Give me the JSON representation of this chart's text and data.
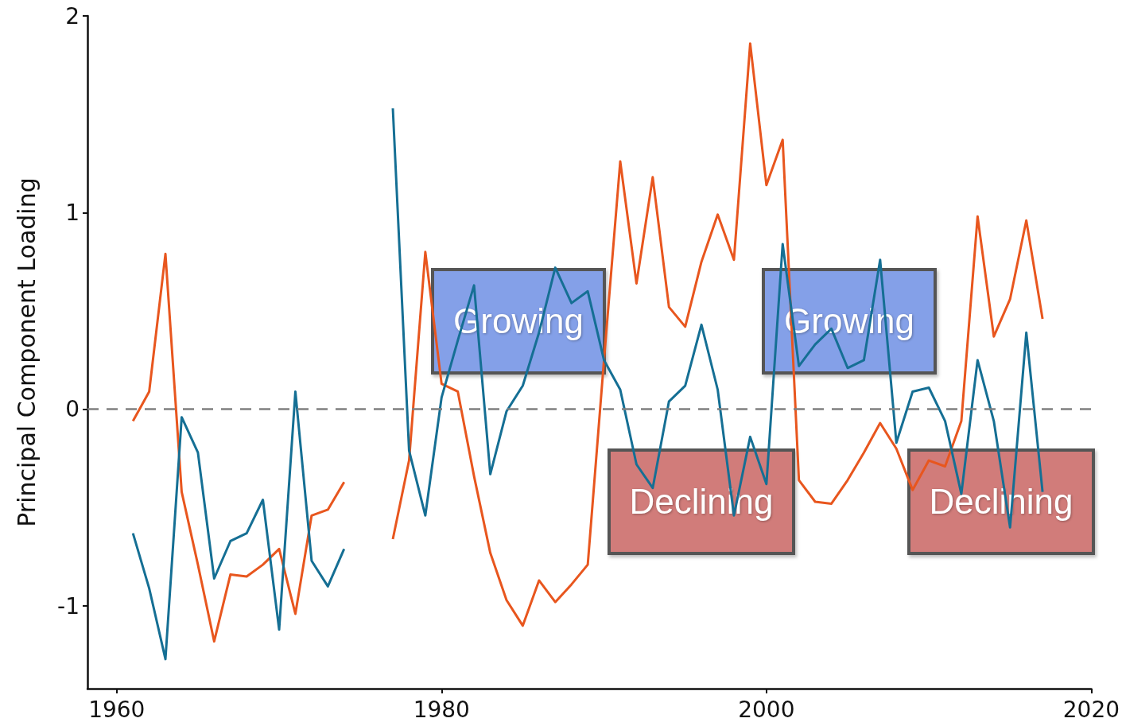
{
  "chart_data": {
    "type": "line",
    "ylabel": "Principal Component Loading",
    "x": [
      1961,
      1962,
      1963,
      1964,
      1965,
      1966,
      1967,
      1968,
      1969,
      1970,
      1971,
      1972,
      1973,
      1974,
      1975,
      1976,
      1977,
      1978,
      1979,
      1980,
      1981,
      1982,
      1983,
      1984,
      1985,
      1986,
      1987,
      1988,
      1989,
      1990,
      1991,
      1992,
      1993,
      1994,
      1995,
      1996,
      1997,
      1998,
      1999,
      2000,
      2001,
      2002,
      2003,
      2004,
      2005,
      2006,
      2007,
      2008,
      2009,
      2010,
      2011,
      2012,
      2013,
      2014,
      2015,
      2016,
      2017
    ],
    "series": [
      {
        "color": "#e8561e",
        "values": [
          -0.06,
          0.09,
          0.79,
          -0.42,
          -0.79,
          -1.18,
          -0.84,
          -0.85,
          -0.79,
          -0.71,
          -1.04,
          -0.54,
          -0.51,
          -0.37,
          null,
          null,
          -0.66,
          -0.26,
          0.8,
          0.13,
          0.09,
          -0.34,
          -0.73,
          -0.97,
          -1.1,
          -0.87,
          -0.98,
          -0.89,
          -0.79,
          0.25,
          1.26,
          0.64,
          1.18,
          0.52,
          0.42,
          0.75,
          0.99,
          0.76,
          1.86,
          1.14,
          1.37,
          -0.36,
          -0.47,
          -0.48,
          -0.36,
          -0.22,
          -0.07,
          -0.2,
          -0.41,
          -0.26,
          -0.29,
          -0.06,
          0.98,
          0.37,
          0.56,
          0.96,
          0.46
        ]
      },
      {
        "color": "#156f94",
        "values": [
          -0.63,
          -0.91,
          -1.27,
          -0.04,
          -0.22,
          -0.86,
          -0.67,
          -0.63,
          -0.46,
          -1.12,
          0.09,
          -0.77,
          -0.9,
          -0.71,
          null,
          null,
          1.53,
          -0.21,
          -0.54,
          0.06,
          0.35,
          0.63,
          -0.33,
          -0.01,
          0.12,
          0.39,
          0.72,
          0.54,
          0.6,
          0.25,
          0.1,
          -0.28,
          -0.4,
          0.04,
          0.12,
          0.43,
          0.1,
          -0.54,
          -0.14,
          -0.38,
          0.84,
          0.22,
          0.33,
          0.41,
          0.21,
          0.25,
          0.76,
          -0.17,
          0.09,
          0.11,
          -0.06,
          -0.43,
          0.25,
          -0.06,
          -0.6,
          0.39,
          -0.42
        ]
      }
    ],
    "xlim": [
      1958.2,
      2020
    ],
    "xticks": [
      1960,
      1980,
      2000,
      2020
    ],
    "ylim": [
      -1.42,
      2
    ],
    "yticks": [
      -1,
      0,
      1,
      2
    ],
    "ref_lines": [
      {
        "axis": "y",
        "value": 0,
        "color": "#808080",
        "line_style": "dashed"
      }
    ],
    "annotations": [
      "Growing",
      "Declining",
      "Growing",
      "Declining"
    ],
    "grid": false,
    "marker": "none",
    "line_style": "solid"
  }
}
